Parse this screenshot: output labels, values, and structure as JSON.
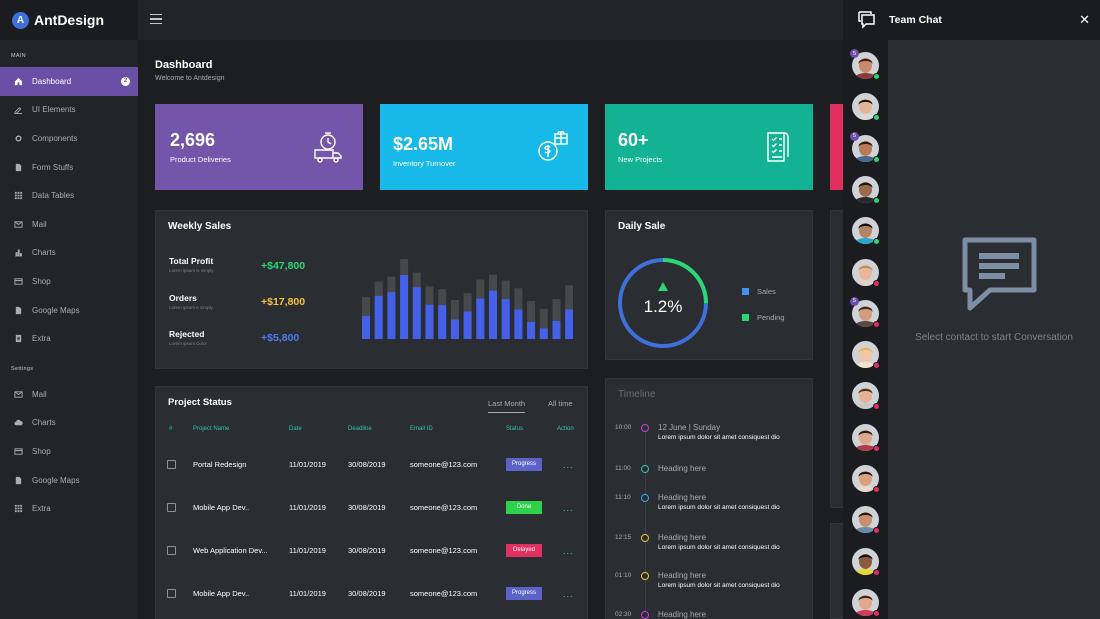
{
  "brand": {
    "logo_letter": "A",
    "name": "AntDesign"
  },
  "sidebar": {
    "main_section": "MAIN",
    "main_items": [
      {
        "label": "Dashboard",
        "icon": "home-icon",
        "badge": "2",
        "active": true
      },
      {
        "label": "UI Elements",
        "icon": "pen-icon"
      },
      {
        "label": "Components",
        "icon": "gear-icon"
      },
      {
        "label": "Form Stuffs",
        "icon": "file-icon"
      },
      {
        "label": "Data Tables",
        "icon": "grid-icon"
      },
      {
        "label": "Mail",
        "icon": "mail-icon"
      },
      {
        "label": "Charts",
        "icon": "bar-chart-icon"
      },
      {
        "label": "Shop",
        "icon": "card-icon"
      },
      {
        "label": "Google Maps",
        "icon": "map-icon"
      },
      {
        "label": "Extra",
        "icon": "document-icon"
      }
    ],
    "settings_section": "Settings",
    "settings_items": [
      {
        "label": "Mail",
        "icon": "mail-icon"
      },
      {
        "label": "Charts",
        "icon": "cloud-icon"
      },
      {
        "label": "Shop",
        "icon": "card-icon"
      },
      {
        "label": "Google Maps",
        "icon": "map-icon"
      },
      {
        "label": "Extra",
        "icon": "grid-icon"
      }
    ]
  },
  "page": {
    "title": "Dashboard",
    "subtitle": "Welcome to Antdesign"
  },
  "stats": [
    {
      "value": "2,696",
      "label": "Product Deliveries",
      "color": "#7355a9",
      "icon": "delivery-icon"
    },
    {
      "value": "$2.65M",
      "label": "Inventory Turnover",
      "color": "#16b9e7",
      "icon": "money-gift-icon"
    },
    {
      "value": "60+",
      "label": "New Projects",
      "color": "#13b294",
      "icon": "checklist-icon"
    },
    {
      "value": "",
      "label": "",
      "color": "#e12f5f",
      "icon": ""
    }
  ],
  "weekly_sales": {
    "title": "Weekly Sales",
    "rows": [
      {
        "name": "Total Profit",
        "sub": "Lorem ipsum is simply",
        "value": "+$47,800",
        "color": "#2ed573"
      },
      {
        "name": "Orders",
        "sub": "Lorem ipsum e simply",
        "value": "+$17,800",
        "color": "#f6c23e"
      },
      {
        "name": "Rejected",
        "sub": "Lorem ipsum Dolor",
        "value": "+$5,800",
        "color": "#4e7bf0"
      }
    ]
  },
  "chart_data": {
    "type": "bar",
    "categories": [
      "",
      "",
      "",
      "",
      "",
      "",
      "",
      "",
      "",
      "",
      "",
      "",
      "",
      "",
      "",
      "",
      ""
    ],
    "series": [
      {
        "values": [
          55,
          75,
          75,
          80,
          78,
          65,
          68,
          50,
          60,
          68,
          75,
          68,
          58,
          45,
          35,
          45,
          55
        ]
      },
      {
        "values": [
          100,
          100,
          100,
          100,
          100,
          100,
          100,
          100,
          100,
          100,
          100,
          100,
          100,
          100,
          100,
          100,
          100
        ]
      }
    ],
    "stacked": false,
    "colors": [
      "#4561ea",
      "#46484c"
    ],
    "totals": [
      43,
      59,
      64,
      82,
      68,
      54,
      51,
      40,
      47,
      61,
      66,
      60,
      52,
      39,
      31,
      41,
      55
    ]
  },
  "daily_sale": {
    "title": "Daily Sale",
    "center_value": "1.2%",
    "legend": [
      {
        "label": "Sales",
        "color": "#4190f2"
      },
      {
        "label": "Pending",
        "color": "#2ed573"
      }
    ],
    "sales_color": "#3f6fd8",
    "pending_color": "#2ed573",
    "pending_fraction": 0.25
  },
  "project_status": {
    "title": "Project Status",
    "tabs": [
      "Last Month",
      "All time"
    ],
    "columns": [
      "#",
      "Project Name",
      "Date",
      "Deadline",
      "Email ID",
      "Status",
      "Action"
    ],
    "rows": [
      {
        "name": "Portal Redesign",
        "date": "11/01/2019",
        "deadline": "30/08/2019",
        "email": "someone@123.com",
        "status": "Progress",
        "status_color": "#5b63c8",
        "action": "..."
      },
      {
        "name": "Mobile App Dev..",
        "date": "11/01/2019",
        "deadline": "30/08/2019",
        "email": "someone@123.com",
        "status": "Done",
        "status_color": "#2ed14a",
        "action": "..."
      },
      {
        "name": "Web Application Dev...",
        "date": "11/01/2019",
        "deadline": "30/08/2019",
        "email": "someone@123.com",
        "status": "Delayed",
        "status_color": "#e12f5f",
        "action": "..."
      },
      {
        "name": "Mobile App Dev..",
        "date": "11/01/2019",
        "deadline": "30/08/2019",
        "email": "someone@123.com",
        "status": "Progress",
        "status_color": "#5b63c8",
        "action": "..."
      }
    ]
  },
  "timeline": {
    "title": "Timeline",
    "items": [
      {
        "time": "10:00",
        "heading": "12 June | Sunday",
        "text": "Lorem ipsum dolor sit amet consiquest dio",
        "color": "#c93fd6"
      },
      {
        "time": "11:00",
        "heading": "Heading here",
        "text": "",
        "color": "#2ec6b0"
      },
      {
        "time": "11:10",
        "heading": "Heading here",
        "text": "Lorem ipsum dolor sit amet consiquest dio",
        "color": "#3aa7e8"
      },
      {
        "time": "12:15",
        "heading": "Heading here",
        "text": "Lorem ipsum dolor sit amet consiquest dio",
        "color": "#f6c23e"
      },
      {
        "time": "01:10",
        "heading": "Heading here",
        "text": "Lorem ipsum dolor sit amet consiquest dio",
        "color": "#f6c23e"
      },
      {
        "time": "02:30",
        "heading": "Heading here",
        "text": "",
        "color": "#c93fd6"
      }
    ]
  },
  "chat": {
    "title": "Team Chat",
    "close": "✕",
    "empty_text": "Select contact to start Conversation",
    "contacts": [
      {
        "count": "5",
        "status_color": "#2ed573",
        "skin": "#c98a6b",
        "hair": "#3a2418",
        "shirt": "#8a3b3b"
      },
      {
        "count": "",
        "status_color": "#2ed573",
        "skin": "#e3b596",
        "hair": "#1f1a17",
        "shirt": "#d9d9d9"
      },
      {
        "count": "5",
        "status_color": "#2ed573",
        "skin": "#b87a58",
        "hair": "#2b1d14",
        "shirt": "#4a6a8a"
      },
      {
        "count": "",
        "status_color": "#2ed573",
        "skin": "#9a6a4c",
        "hair": "#1a1410",
        "shirt": "#2a2a2a"
      },
      {
        "count": "",
        "status_color": "#2ed573",
        "skin": "#b5835f",
        "hair": "#0f0d0c",
        "shirt": "#2aa8c9"
      },
      {
        "count": "",
        "status_color": "#e12f5f",
        "skin": "#e8b79b",
        "hair": "#c58a55",
        "shirt": "#e0d0c8"
      },
      {
        "count": "5",
        "status_color": "#e12f5f",
        "skin": "#d49c7c",
        "hair": "#3a2a20",
        "shirt": "#5a4a3a"
      },
      {
        "count": "",
        "status_color": "#e12f5f",
        "skin": "#efc7a5",
        "hair": "#e2b35a",
        "shirt": "#f0e6d0"
      },
      {
        "count": "",
        "status_color": "#e12f5f",
        "skin": "#e6b294",
        "hair": "#4a3326",
        "shirt": "#c9c9c9"
      },
      {
        "count": "",
        "status_color": "#e12f5f",
        "skin": "#dba88a",
        "hair": "#2a1a12",
        "shirt": "#b03a4a"
      },
      {
        "count": "",
        "status_color": "#e12f5f",
        "skin": "#d9a07e",
        "hair": "#1a1410",
        "shirt": "#e8d8c8"
      },
      {
        "count": "",
        "status_color": "#e12f5f",
        "skin": "#c78f6c",
        "hair": "#2a1c14",
        "shirt": "#6a8aa8"
      },
      {
        "count": "",
        "status_color": "#e12f5f",
        "skin": "#8a5a3c",
        "hair": "#111111",
        "shirt": "#e6d92a"
      },
      {
        "count": "",
        "status_color": "#e12f5f",
        "skin": "#e0a98d",
        "hair": "#3a2418",
        "shirt": "#d23a5a"
      }
    ]
  }
}
